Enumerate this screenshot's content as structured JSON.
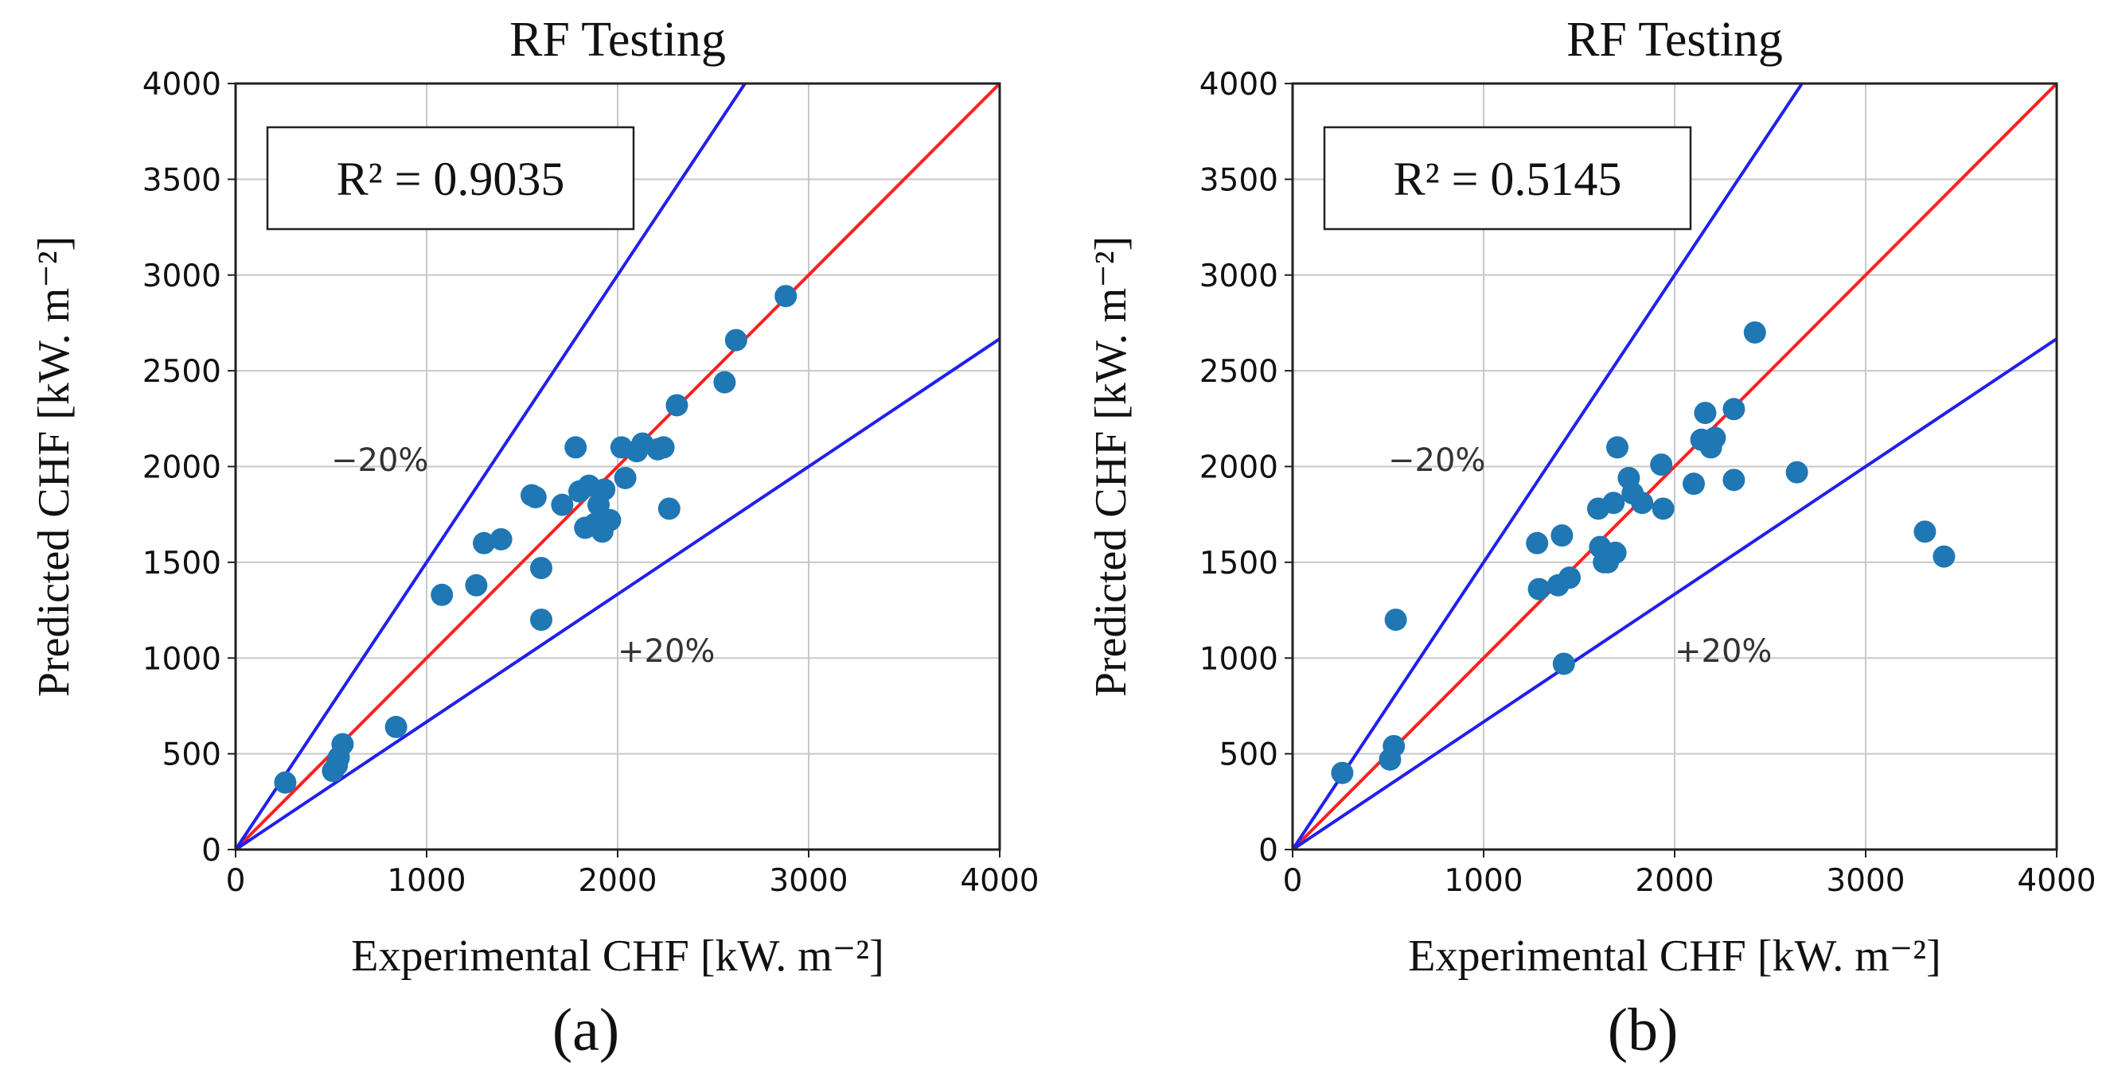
{
  "chart_data": [
    {
      "type": "scatter",
      "panel_label": "(a)",
      "title": "RF Testing",
      "xlabel": "Experimental CHF [kW. m⁻²]",
      "ylabel": "Predicted CHF [kW. m⁻²]",
      "xlim": [
        0,
        4000
      ],
      "ylim": [
        0,
        4000
      ],
      "xticks": [
        "0",
        "1000",
        "2000",
        "3000",
        "4000"
      ],
      "yticks": [
        "0",
        "500",
        "1000",
        "1500",
        "2000",
        "2500",
        "3000",
        "3500",
        "4000"
      ],
      "grid": true,
      "r2_label": "R² = 0.9035",
      "band_minus_label": "−20%",
      "band_plus_label": "+20%",
      "reference_lines": [
        {
          "name": "ideal",
          "slope": 1.0,
          "color": "#ff2020"
        },
        {
          "name": "-20%",
          "slope": 1.5,
          "color": "#2020ee"
        },
        {
          "name": "+20%",
          "slope": 0.6667,
          "color": "#2020ee"
        }
      ],
      "marker_color": "#1f77b4",
      "x": [
        260,
        510,
        530,
        560,
        540,
        840,
        1080,
        1260,
        1300,
        1390,
        1570,
        1550,
        1600,
        1600,
        1710,
        1780,
        1800,
        1830,
        1850,
        1880,
        1900,
        1920,
        1930,
        1960,
        2020,
        2040,
        2100,
        2130,
        2210,
        2240,
        2270,
        2310,
        2560,
        2620,
        2880
      ],
      "y": [
        350,
        410,
        440,
        550,
        480,
        640,
        1330,
        1380,
        1600,
        1620,
        1840,
        1850,
        1470,
        1200,
        1800,
        2100,
        1870,
        1680,
        1900,
        1700,
        1800,
        1660,
        1880,
        1720,
        2100,
        1940,
        2080,
        2120,
        2090,
        2100,
        1780,
        2320,
        2440,
        2660,
        2890
      ]
    },
    {
      "type": "scatter",
      "panel_label": "(b)",
      "title": "RF Testing",
      "xlabel": "Experimental CHF [kW. m⁻²]",
      "ylabel": "Predicted CHF [kW. m⁻²]",
      "xlim": [
        0,
        4000
      ],
      "ylim": [
        0,
        4000
      ],
      "xticks": [
        "0",
        "1000",
        "2000",
        "3000",
        "4000"
      ],
      "yticks": [
        "0",
        "500",
        "1000",
        "1500",
        "2000",
        "2500",
        "3000",
        "3500",
        "4000"
      ],
      "grid": true,
      "r2_label": "R² = 0.5145",
      "band_minus_label": "−20%",
      "band_plus_label": "+20%",
      "reference_lines": [
        {
          "name": "ideal",
          "slope": 1.0,
          "color": "#ff2020"
        },
        {
          "name": "-20%",
          "slope": 1.5,
          "color": "#2020ee"
        },
        {
          "name": "+20%",
          "slope": 0.6667,
          "color": "#2020ee"
        }
      ],
      "marker_color": "#1f77b4",
      "x": [
        260,
        510,
        530,
        540,
        1280,
        1290,
        1390,
        1410,
        1420,
        1450,
        1600,
        1610,
        1630,
        1650,
        1680,
        1690,
        1700,
        1760,
        1780,
        1830,
        1930,
        1940,
        2100,
        2140,
        2160,
        2190,
        2210,
        2310,
        2310,
        2420,
        2640,
        3310,
        3410
      ],
      "y": [
        400,
        470,
        540,
        1200,
        1600,
        1360,
        1380,
        1640,
        970,
        1420,
        1780,
        1580,
        1500,
        1500,
        1810,
        1550,
        2100,
        1940,
        1860,
        1810,
        2010,
        1780,
        1910,
        2140,
        2280,
        2100,
        2150,
        1930,
        2300,
        2700,
        1970,
        1660,
        1530
      ]
    }
  ]
}
